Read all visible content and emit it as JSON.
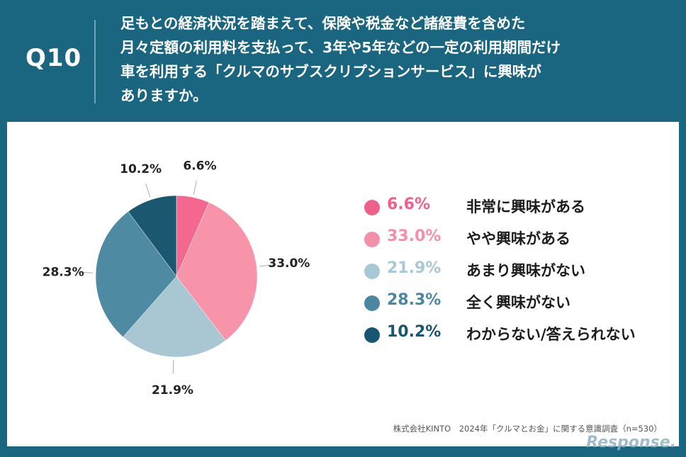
{
  "header": {
    "question_number": "Q10",
    "question_lines": [
      "足もとの経済状況を踏まえて、保険や税金など諸経費を含めた",
      "月々定額の利用料を支払って、3年や5年などの一定の利用期間だけ",
      "車を利用する「クルマのサブスクリプションサービス」に興味が",
      "ありますか。"
    ]
  },
  "chart_data": {
    "type": "pie",
    "title": "",
    "start_angle_deg": 0,
    "direction": "clockwise",
    "slices": [
      {
        "label": "非常に興味がある",
        "value": 6.6,
        "display": "6.6%",
        "color": "#f4678f",
        "legend_color": "#f0608b"
      },
      {
        "label": "やや興味がある",
        "value": 33.0,
        "display": "33.0%",
        "color": "#f794aa",
        "legend_color": "#f58fa8"
      },
      {
        "label": "あまり興味がない",
        "value": 21.9,
        "display": "21.9%",
        "color": "#a9c6d3",
        "legend_color": "#a9c8d5"
      },
      {
        "label": "全く興味がない",
        "value": 28.3,
        "display": "28.3%",
        "color": "#4e8aa2",
        "legend_color": "#4b87a0"
      },
      {
        "label": "わからない/答えられない",
        "value": 10.2,
        "display": "10.2%",
        "color": "#1b5870",
        "legend_color": "#175570"
      }
    ],
    "legend_position": "right"
  },
  "footer": {
    "source": "株式会社KINTO　2024年「クルマとお金」に関する意識調査（n=530）",
    "logo": "KINTO",
    "watermark": "Response."
  }
}
